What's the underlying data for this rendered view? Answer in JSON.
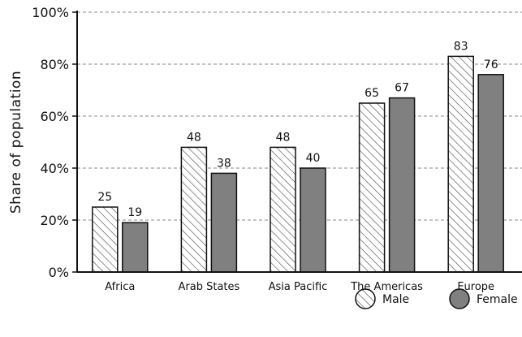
{
  "chart_data": {
    "type": "bar",
    "title": "",
    "xlabel": "",
    "ylabel": "Share of  population",
    "ylim": [
      0,
      100
    ],
    "yticks": [
      0,
      20,
      40,
      60,
      80,
      100
    ],
    "ytick_labels": [
      "0%",
      "20%",
      "40%",
      "60%",
      "80%",
      "100%"
    ],
    "grid": "horizontal dashed",
    "legend_position": "bottom-right",
    "categories": [
      "Africa",
      "Arab States",
      "Asia Pacific",
      "The Americas",
      "Europe"
    ],
    "series": [
      {
        "name": "Male",
        "values": [
          25,
          48,
          48,
          65,
          83
        ],
        "fill": "hatched",
        "color": "#ffffff"
      },
      {
        "name": "Female",
        "values": [
          19,
          38,
          40,
          67,
          76
        ],
        "fill": "solid",
        "color": "#808080"
      }
    ],
    "data_labels": true
  }
}
